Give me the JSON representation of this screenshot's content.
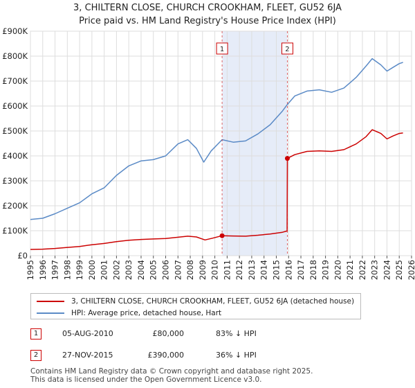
{
  "title": {
    "line1": "3, CHILTERN CLOSE, CHURCH CROOKHAM, FLEET, GU52 6JA",
    "line2": "Price paid vs. HM Land Registry's House Price Index (HPI)"
  },
  "chart_data": {
    "type": "line",
    "title": "3, CHILTERN CLOSE, CHURCH CROOKHAM, FLEET, GU52 6JA — Price paid vs. HM Land Registry's House Price Index (HPI)",
    "xlabel": "",
    "ylabel": "",
    "xlim": [
      1995,
      2026
    ],
    "ylim": [
      0,
      900000
    ],
    "x_ticks": [
      "1995",
      "1996",
      "1997",
      "1998",
      "1999",
      "2000",
      "2001",
      "2002",
      "2003",
      "2004",
      "2005",
      "2006",
      "2007",
      "2008",
      "2009",
      "2010",
      "2011",
      "2012",
      "2013",
      "2014",
      "2015",
      "2016",
      "2017",
      "2018",
      "2019",
      "2020",
      "2021",
      "2022",
      "2023",
      "2024",
      "2025",
      "2026"
    ],
    "y_ticks": [
      {
        "value": 0,
        "label": "£0"
      },
      {
        "value": 100000,
        "label": "£100K"
      },
      {
        "value": 200000,
        "label": "£200K"
      },
      {
        "value": 300000,
        "label": "£300K"
      },
      {
        "value": 400000,
        "label": "£400K"
      },
      {
        "value": 500000,
        "label": "£500K"
      },
      {
        "value": 600000,
        "label": "£600K"
      },
      {
        "value": 700000,
        "label": "£700K"
      },
      {
        "value": 800000,
        "label": "£800K"
      },
      {
        "value": 900000,
        "label": "£900K"
      }
    ],
    "grid": true,
    "highlight_span": [
      2010.6,
      2015.9
    ],
    "series": [
      {
        "name": "3, CHILTERN CLOSE, CHURCH CROOKHAM, FLEET, GU52 6JA (detached house)",
        "color": "#cc0000",
        "points": [
          [
            1995.0,
            25000
          ],
          [
            1996.0,
            26000
          ],
          [
            1997.0,
            29000
          ],
          [
            1998.0,
            33000
          ],
          [
            1999.0,
            37000
          ],
          [
            2000.0,
            44000
          ],
          [
            2001.0,
            49000
          ],
          [
            2002.0,
            56000
          ],
          [
            2003.0,
            62000
          ],
          [
            2004.0,
            65000
          ],
          [
            2005.0,
            67000
          ],
          [
            2006.0,
            69000
          ],
          [
            2007.0,
            74000
          ],
          [
            2007.8,
            78000
          ],
          [
            2008.5,
            75000
          ],
          [
            2009.2,
            63000
          ],
          [
            2009.8,
            70000
          ],
          [
            2010.59,
            80000
          ],
          [
            2011.5,
            79000
          ],
          [
            2012.5,
            78000
          ],
          [
            2013.5,
            82000
          ],
          [
            2014.5,
            87000
          ],
          [
            2015.5,
            94000
          ],
          [
            2015.88,
            99000
          ],
          [
            2015.9,
            390000
          ],
          [
            2016.5,
            405000
          ],
          [
            2017.5,
            418000
          ],
          [
            2018.5,
            420000
          ],
          [
            2019.5,
            418000
          ],
          [
            2020.5,
            425000
          ],
          [
            2021.5,
            448000
          ],
          [
            2022.3,
            477000
          ],
          [
            2022.8,
            505000
          ],
          [
            2023.5,
            490000
          ],
          [
            2024.0,
            468000
          ],
          [
            2024.5,
            480000
          ],
          [
            2025.0,
            490000
          ],
          [
            2025.3,
            492000
          ]
        ]
      },
      {
        "name": "HPI: Average price, detached house, Hart",
        "color": "#5a8ac6",
        "points": [
          [
            1995.0,
            145000
          ],
          [
            1996.0,
            150000
          ],
          [
            1997.0,
            168000
          ],
          [
            1998.0,
            190000
          ],
          [
            1999.0,
            212000
          ],
          [
            2000.0,
            248000
          ],
          [
            2001.0,
            272000
          ],
          [
            2002.0,
            322000
          ],
          [
            2003.0,
            360000
          ],
          [
            2004.0,
            380000
          ],
          [
            2005.0,
            385000
          ],
          [
            2006.0,
            400000
          ],
          [
            2007.0,
            448000
          ],
          [
            2007.8,
            465000
          ],
          [
            2008.5,
            430000
          ],
          [
            2009.1,
            375000
          ],
          [
            2009.7,
            420000
          ],
          [
            2010.59,
            465000
          ],
          [
            2011.5,
            455000
          ],
          [
            2012.5,
            460000
          ],
          [
            2013.5,
            488000
          ],
          [
            2014.5,
            525000
          ],
          [
            2015.5,
            580000
          ],
          [
            2015.88,
            605000
          ],
          [
            2016.5,
            640000
          ],
          [
            2017.5,
            660000
          ],
          [
            2018.5,
            665000
          ],
          [
            2019.5,
            655000
          ],
          [
            2020.5,
            672000
          ],
          [
            2021.5,
            715000
          ],
          [
            2022.3,
            760000
          ],
          [
            2022.8,
            790000
          ],
          [
            2023.5,
            765000
          ],
          [
            2024.0,
            740000
          ],
          [
            2024.5,
            755000
          ],
          [
            2025.0,
            770000
          ],
          [
            2025.3,
            775000
          ]
        ]
      }
    ],
    "annotations": [
      {
        "label": "1",
        "x": 2010.59,
        "y": 80000
      },
      {
        "label": "2",
        "x": 2015.9,
        "y": 390000
      }
    ]
  },
  "legend": {
    "items": [
      {
        "label": "3, CHILTERN CLOSE, CHURCH CROOKHAM, FLEET, GU52 6JA (detached house)",
        "color": "#cc0000"
      },
      {
        "label": "HPI: Average price, detached house, Hart",
        "color": "#5a8ac6"
      }
    ]
  },
  "sales": [
    {
      "num": "1",
      "date": "05-AUG-2010",
      "price": "£80,000",
      "hpi": "83% ↓ HPI"
    },
    {
      "num": "2",
      "date": "27-NOV-2015",
      "price": "£390,000",
      "hpi": "36% ↓ HPI"
    }
  ],
  "footer": {
    "line1": "Contains HM Land Registry data © Crown copyright and database right 2025.",
    "line2": "This data is licensed under the Open Government Licence v3.0."
  }
}
